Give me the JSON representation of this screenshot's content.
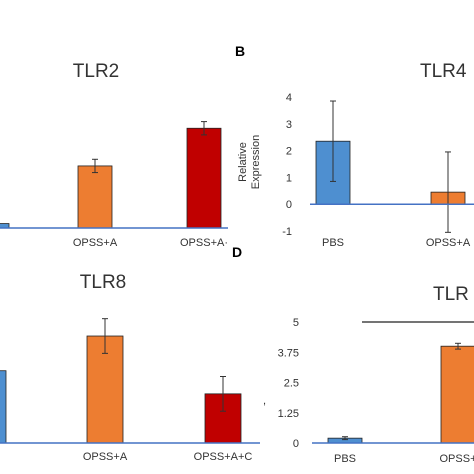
{
  "chart_data": [
    {
      "type": "bar",
      "panel": "",
      "title": "TLR2",
      "categories": [
        "",
        "OPSS+A",
        "OPSS+A+C"
      ],
      "category_labels_visible": [
        "",
        "OPSS+A",
        "OPSS+A·"
      ],
      "series": [
        {
          "values": [
            0.2,
            2.8,
            4.5
          ],
          "errors": [
            0.05,
            0.3,
            0.3
          ]
        }
      ],
      "colors": [
        "#4e8fd0",
        "#ed7d31",
        "#c00000"
      ],
      "ylim": [
        0,
        6
      ]
    },
    {
      "type": "bar",
      "panel": "B",
      "title": "TLR4",
      "ylabel_lines": [
        "Relative",
        "Expression"
      ],
      "categories": [
        "PBS",
        "OPSS+A"
      ],
      "series": [
        {
          "values": [
            2.35,
            0.45
          ],
          "errors": [
            1.5,
            1.5
          ]
        }
      ],
      "colors": [
        "#4e8fd0",
        "#ed7d31"
      ],
      "yticks": [
        4,
        3,
        2,
        1,
        0,
        -1
      ],
      "ylim": [
        -1,
        4
      ]
    },
    {
      "type": "bar",
      "panel": "",
      "title": "TLR8",
      "categories": [
        "",
        "OPSS+A",
        "OPSS+A+C"
      ],
      "series": [
        {
          "values": [
            2.5,
            3.7,
            1.7
          ],
          "errors": [
            0.0,
            0.6,
            0.6
          ]
        }
      ],
      "colors": [
        "#4e8fd0",
        "#ed7d31",
        "#c00000"
      ],
      "ylim": [
        0,
        4.6
      ]
    },
    {
      "type": "bar",
      "panel": "D",
      "title": "TLR",
      "categories": [
        "PBS",
        "OPSS+"
      ],
      "series": [
        {
          "values": [
            0.2,
            4.0
          ],
          "errors": [
            0.06,
            0.12
          ]
        }
      ],
      "colors": [
        "#4e8fd0",
        "#ed7d31"
      ],
      "yticks": [
        "5",
        "3.75",
        "2.5",
        "1.25",
        "0"
      ],
      "ylim": [
        0,
        5
      ]
    }
  ]
}
